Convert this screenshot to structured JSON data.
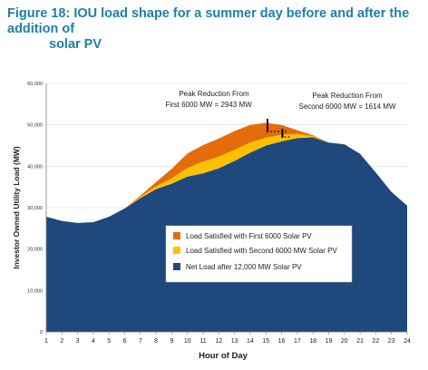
{
  "figure_title_line1": "Figure 18: IOU load shape for a summer day before and after the addition of",
  "figure_title_line2": "solar PV",
  "colors": {
    "net_load": "#1f497d",
    "second_pv": "#ffc000",
    "first_pv": "#e46c0a",
    "annotation_line": "#000000",
    "title": "#1f7fa8"
  },
  "chart_data": {
    "type": "area",
    "title": "Figure 18: IOU load shape for a summer day before and after the addition of solar PV",
    "xlabel": "Hour of Day",
    "ylabel": "Investor Owned Utility Load (MW)",
    "ylim": [
      0,
      60000
    ],
    "yticks": [
      0,
      10000,
      20000,
      30000,
      40000,
      50000,
      60000
    ],
    "ytick_labels": [
      "0",
      "10,000",
      "20,000",
      "30,000",
      "40,000",
      "50,000",
      "60,000"
    ],
    "x": [
      1,
      2,
      3,
      4,
      5,
      6,
      7,
      8,
      9,
      10,
      11,
      12,
      13,
      14,
      15,
      16,
      17,
      18,
      19,
      20,
      21,
      22,
      23,
      24
    ],
    "xtick_labels": [
      "1",
      "2",
      "3",
      "4",
      "5",
      "6",
      "7",
      "8",
      "9",
      "10",
      "11",
      "12",
      "13",
      "14",
      "15",
      "16",
      "17",
      "18",
      "19",
      "20",
      "21",
      "22",
      "23",
      "24"
    ],
    "stacked": true,
    "series": [
      {
        "name": "Net Load after 12,000 MW Solar PV",
        "color": "#1f497d",
        "values": [
          27800,
          26800,
          26300,
          26500,
          27800,
          29800,
          32300,
          34500,
          35800,
          37500,
          38300,
          39500,
          41300,
          43300,
          45000,
          46000,
          46800,
          47000,
          45700,
          45300,
          43000,
          38500,
          33800,
          30500
        ]
      },
      {
        "name": "Load Satisfied with Second 6000 MW Solar PV",
        "color": "#ffc000",
        "values": [
          0,
          0,
          0,
          0,
          0,
          0,
          300,
          700,
          1300,
          2100,
          2800,
          2800,
          2700,
          2400,
          1900,
          1600,
          1000,
          300,
          0,
          0,
          0,
          0,
          0,
          0
        ]
      },
      {
        "name": "Load Satisfied with First 6000 Solar PV",
        "color": "#e46c0a",
        "values": [
          0,
          0,
          0,
          0,
          0,
          0,
          300,
          1000,
          2300,
          3500,
          4000,
          4400,
          4500,
          4300,
          3600,
          2400,
          900,
          200,
          0,
          0,
          0,
          0,
          0,
          0
        ]
      }
    ],
    "legend_position": "center-right",
    "annotations": [
      {
        "text_line1": "Peak Reduction From",
        "text_line2": "First 6000 MW = 2943 MW",
        "x": 15.1
      },
      {
        "text_line1": "Peak Reduction From",
        "text_line2": "Second 6000 MW = 1614 MW",
        "x": 16.05
      }
    ]
  }
}
